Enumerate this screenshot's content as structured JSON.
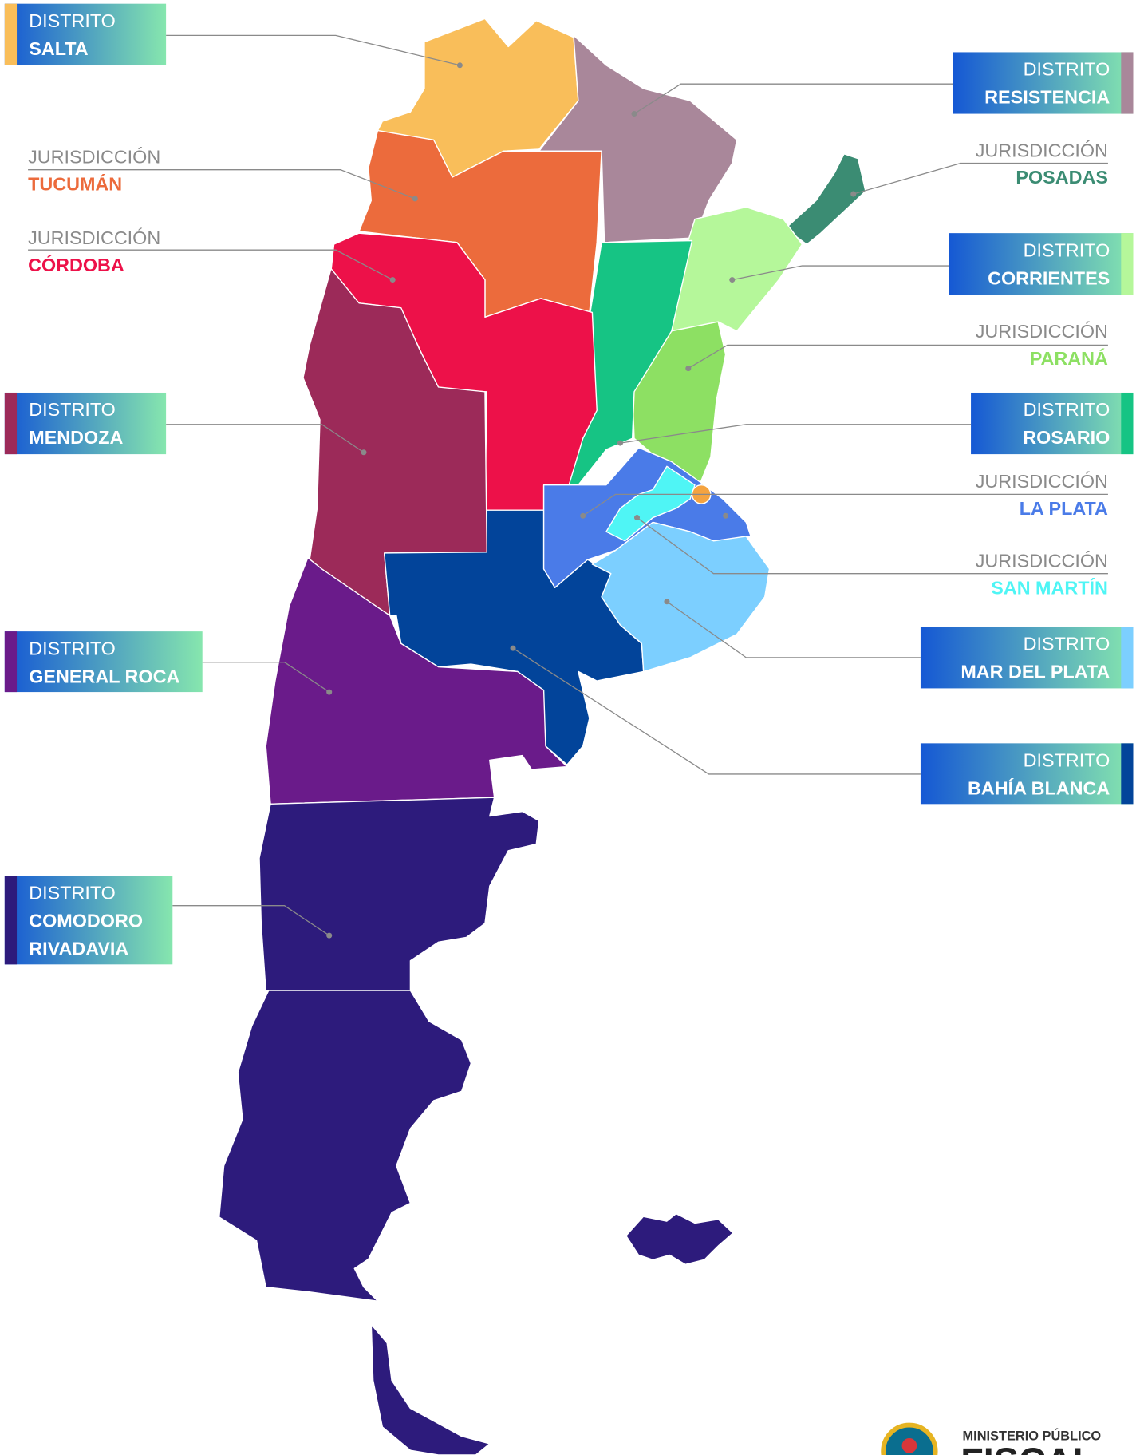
{
  "districts": [
    {
      "kind": "DISTRITO",
      "name": [
        "SALTA"
      ]
    },
    {
      "kind": "JURISDICCIÓN",
      "name": [
        "TUCUMÁN"
      ]
    },
    {
      "kind": "JURISDICCIÓN",
      "name": [
        "CÓRDOBA"
      ]
    },
    {
      "kind": "DISTRITO",
      "name": [
        "MENDOZA"
      ]
    },
    {
      "kind": "DISTRITO",
      "name": [
        "GENERAL ROCA"
      ]
    },
    {
      "kind": "DISTRITO",
      "name": [
        "COMODORO",
        "RIVADAVIA"
      ]
    },
    {
      "kind": "DISTRITO",
      "name": [
        "RESISTENCIA"
      ]
    },
    {
      "kind": "JURISDICCIÓN",
      "name": [
        "POSADAS"
      ]
    },
    {
      "kind": "DISTRITO",
      "name": [
        "CORRIENTES"
      ]
    },
    {
      "kind": "JURISDICCIÓN",
      "name": [
        "PARANÁ"
      ]
    },
    {
      "kind": "DISTRITO",
      "name": [
        "ROSARIO"
      ]
    },
    {
      "kind": "JURISDICCIÓN",
      "name": [
        "LA PLATA"
      ]
    },
    {
      "kind": "JURISDICCIÓN",
      "name": [
        "SAN MARTÍN"
      ]
    },
    {
      "kind": "DISTRITO",
      "name": [
        "MAR DEL PLATA"
      ]
    },
    {
      "kind": "DISTRITO",
      "name": [
        "BAHÍA BLANCA"
      ]
    }
  ],
  "logo": {
    "line1": "MINISTERIO PÚBLICO",
    "line2": "FISCAL"
  }
}
